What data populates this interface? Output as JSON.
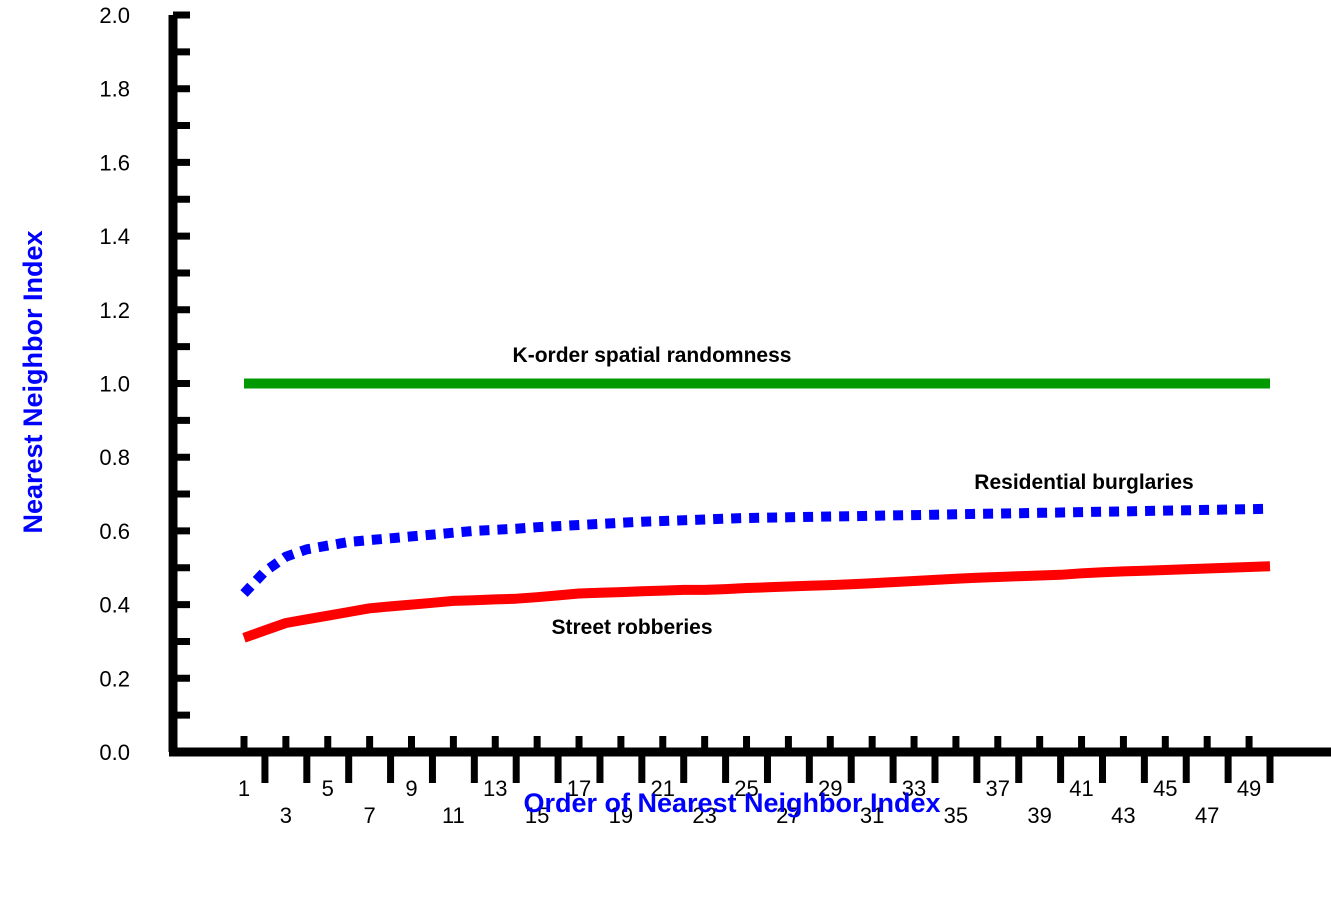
{
  "chart_data": {
    "type": "line",
    "title": "",
    "xlabel": "Order of Nearest Neighbor Index",
    "ylabel": "Nearest Neighbor Index",
    "x": [
      1,
      2,
      3,
      4,
      5,
      6,
      7,
      8,
      9,
      10,
      11,
      12,
      13,
      14,
      15,
      16,
      17,
      18,
      19,
      20,
      21,
      22,
      23,
      24,
      25,
      26,
      27,
      28,
      29,
      30,
      31,
      32,
      33,
      34,
      35,
      36,
      37,
      38,
      39,
      40,
      41,
      42,
      43,
      44,
      45,
      46,
      47,
      48,
      49,
      50
    ],
    "x_tick_labels_upper": [
      "1",
      "5",
      "9",
      "13",
      "17",
      "21",
      "25",
      "29",
      "33",
      "37",
      "41",
      "45",
      "49"
    ],
    "x_tick_labels_lower": [
      "3",
      "7",
      "11",
      "15",
      "19",
      "23",
      "27",
      "31",
      "35",
      "39",
      "43",
      "47"
    ],
    "ylim": [
      0,
      2.0
    ],
    "y_ticks": [
      "0.0",
      "0.2",
      "0.4",
      "0.6",
      "0.8",
      "1.0",
      "1.2",
      "1.4",
      "1.6",
      "1.8",
      "2.0"
    ],
    "grid": false,
    "series": [
      {
        "name": "K-order spatial randomness",
        "color": "#009900",
        "style": "solid",
        "values": [
          1.0,
          1.0,
          1.0,
          1.0,
          1.0,
          1.0,
          1.0,
          1.0,
          1.0,
          1.0,
          1.0,
          1.0,
          1.0,
          1.0,
          1.0,
          1.0,
          1.0,
          1.0,
          1.0,
          1.0,
          1.0,
          1.0,
          1.0,
          1.0,
          1.0,
          1.0,
          1.0,
          1.0,
          1.0,
          1.0,
          1.0,
          1.0,
          1.0,
          1.0,
          1.0,
          1.0,
          1.0,
          1.0,
          1.0,
          1.0,
          1.0,
          1.0,
          1.0,
          1.0,
          1.0,
          1.0,
          1.0,
          1.0,
          1.0,
          1.0
        ]
      },
      {
        "name": "Residential burglaries",
        "color": "#0000ff",
        "style": "dotted",
        "values": [
          0.43,
          0.49,
          0.53,
          0.55,
          0.56,
          0.57,
          0.575,
          0.58,
          0.585,
          0.59,
          0.595,
          0.6,
          0.603,
          0.606,
          0.61,
          0.613,
          0.616,
          0.619,
          0.622,
          0.625,
          0.627,
          0.629,
          0.631,
          0.633,
          0.635,
          0.636,
          0.637,
          0.638,
          0.639,
          0.64,
          0.641,
          0.642,
          0.643,
          0.644,
          0.645,
          0.646,
          0.647,
          0.648,
          0.649,
          0.65,
          0.651,
          0.652,
          0.653,
          0.654,
          0.655,
          0.656,
          0.657,
          0.658,
          0.659,
          0.66
        ]
      },
      {
        "name": "Street robberies",
        "color": "#ff0000",
        "style": "solid",
        "values": [
          0.31,
          0.33,
          0.35,
          0.36,
          0.37,
          0.38,
          0.39,
          0.395,
          0.4,
          0.405,
          0.41,
          0.412,
          0.414,
          0.416,
          0.42,
          0.425,
          0.43,
          0.432,
          0.434,
          0.436,
          0.438,
          0.44,
          0.44,
          0.442,
          0.445,
          0.447,
          0.449,
          0.451,
          0.453,
          0.455,
          0.458,
          0.461,
          0.464,
          0.467,
          0.47,
          0.473,
          0.475,
          0.477,
          0.479,
          0.481,
          0.485,
          0.488,
          0.49,
          0.492,
          0.494,
          0.496,
          0.498,
          0.5,
          0.502,
          0.504
        ]
      }
    ],
    "annotations": [
      {
        "text": "K-order spatial randomness",
        "series": 0
      },
      {
        "text": "Residential burglaries",
        "series": 1
      },
      {
        "text": "Street robberies",
        "series": 2
      }
    ]
  }
}
